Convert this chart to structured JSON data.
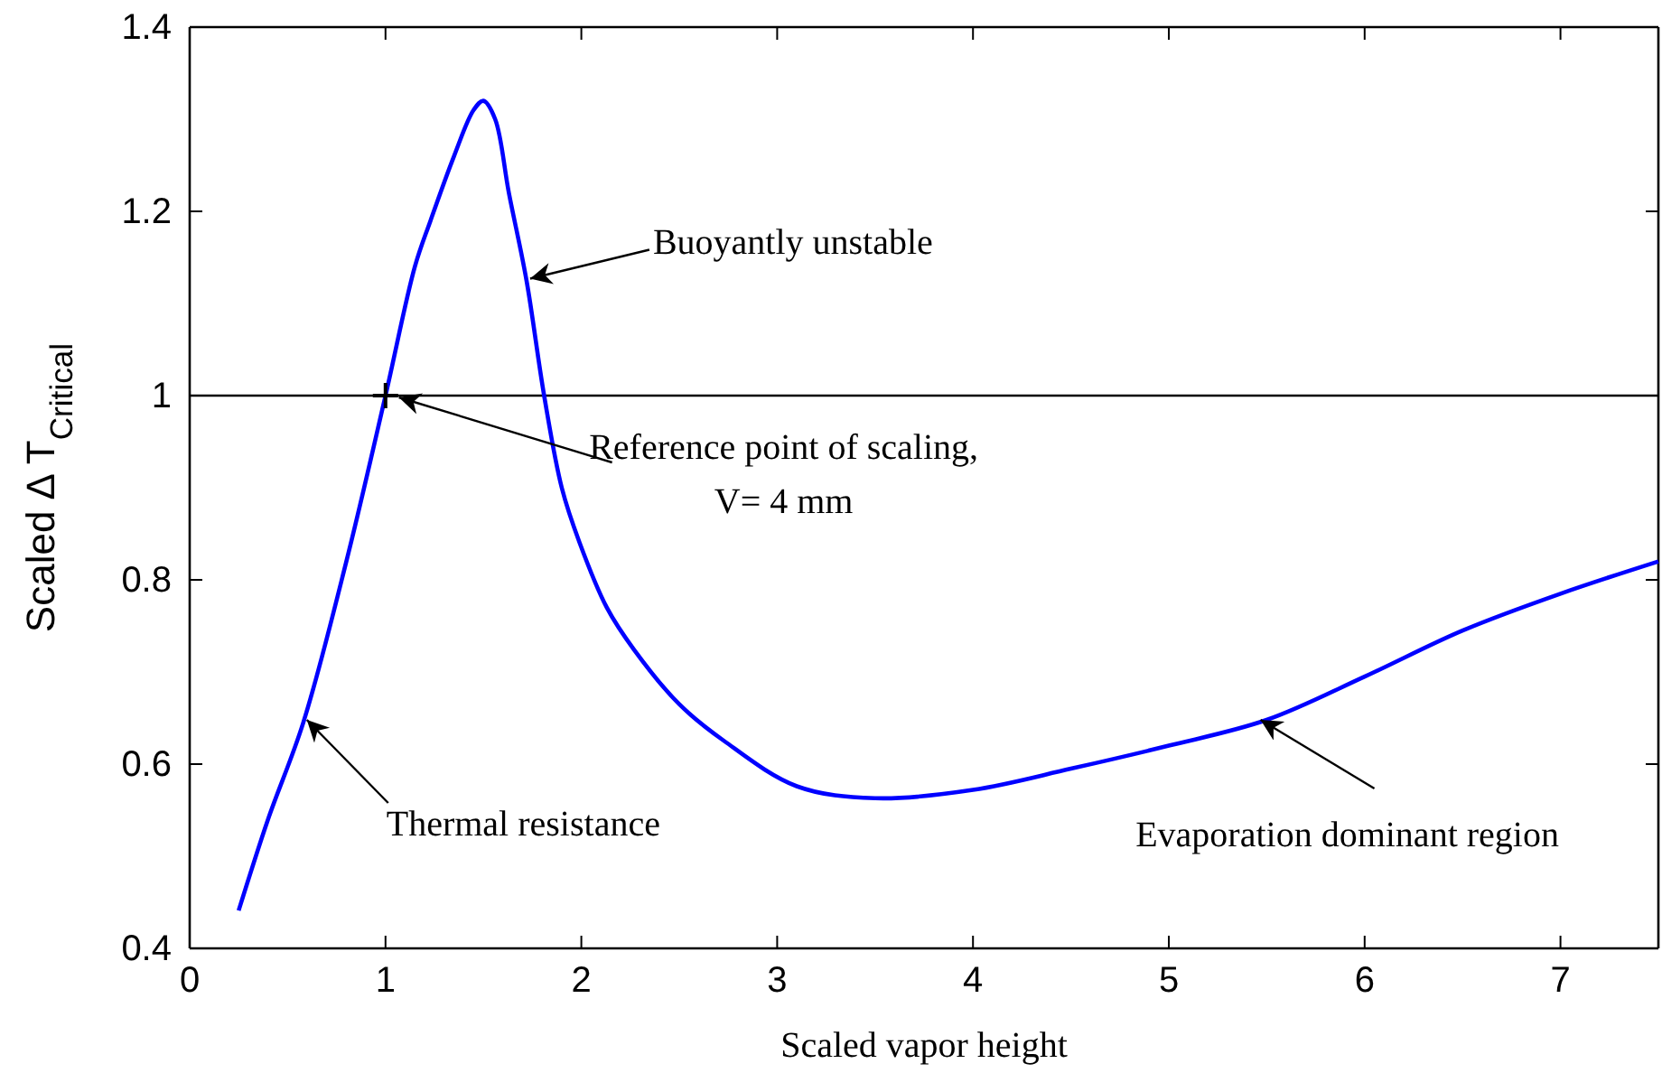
{
  "chart_data": {
    "type": "line",
    "xlabel": "Scaled vapor height",
    "ylabel": "Scaled Δ T$_{Critical}$",
    "xlim": [
      0,
      7.5
    ],
    "ylim": [
      0.4,
      1.4
    ],
    "xticks": [
      0,
      1,
      2,
      3,
      4,
      5,
      6,
      7
    ],
    "yticks": [
      0.4,
      0.6,
      0.8,
      1,
      1.2,
      1.4
    ],
    "grid": false,
    "series": [
      {
        "color": "#0000ff",
        "marker": "none",
        "line_style": "solid",
        "x": [
          0.25,
          0.4,
          0.58,
          0.8,
          1.0,
          1.15,
          1.23,
          1.35,
          1.45,
          1.5,
          1.56,
          1.63,
          1.72,
          1.81,
          1.9,
          1.99,
          2.13,
          2.27,
          2.5,
          2.73,
          3.1,
          3.5,
          4.0,
          4.5,
          5.0,
          5.5,
          6.0,
          6.5,
          7.0,
          7.5
        ],
        "values": [
          0.441,
          0.54,
          0.645,
          0.82,
          1.0,
          1.14,
          1.19,
          1.26,
          1.31,
          1.32,
          1.3,
          1.22,
          1.125,
          1.0,
          0.9,
          0.841,
          0.77,
          0.724,
          0.665,
          0.625,
          0.576,
          0.563,
          0.572,
          0.595,
          0.62,
          0.648,
          0.695,
          0.745,
          0.785,
          0.82
        ]
      },
      {
        "type": "scatter",
        "color": "#000000",
        "marker": "cross",
        "x": [
          1
        ],
        "values": [
          1
        ]
      }
    ],
    "ref_lines": [
      {
        "axis": "y",
        "value": 1,
        "color": "#000000"
      }
    ],
    "annotations": [
      {
        "text": "Buoyantly unstable",
        "x": 1.72,
        "y": 1.125
      },
      {
        "text": "Reference point of scaling,\nV= 4 mm",
        "x": 1.05,
        "y": 1.0
      },
      {
        "text": "Thermal resistance",
        "x": 0.58,
        "y": 0.65
      },
      {
        "text": "Evaporation dominant region",
        "x": 5.45,
        "y": 0.65
      }
    ]
  }
}
